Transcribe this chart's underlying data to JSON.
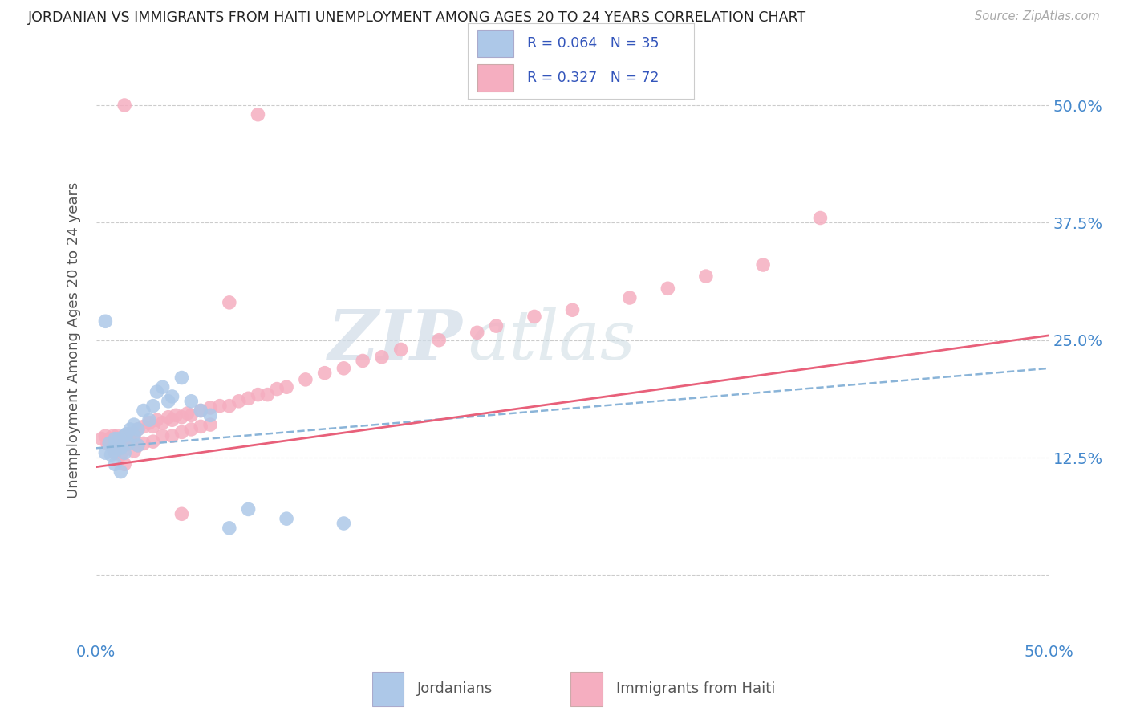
{
  "title": "JORDANIAN VS IMMIGRANTS FROM HAITI UNEMPLOYMENT AMONG AGES 20 TO 24 YEARS CORRELATION CHART",
  "source": "Source: ZipAtlas.com",
  "ylabel": "Unemployment Among Ages 20 to 24 years",
  "xmin": 0.0,
  "xmax": 0.5,
  "ymin": -0.07,
  "ymax": 0.57,
  "ytick_vals": [
    0.0,
    0.125,
    0.25,
    0.375,
    0.5
  ],
  "ytick_labels": [
    "",
    "12.5%",
    "25.0%",
    "37.5%",
    "50.0%"
  ],
  "xtick_labels": [
    "0.0%",
    "50.0%"
  ],
  "legend_r1": "R = 0.064",
  "legend_n1": "N = 35",
  "legend_r2": "R = 0.327",
  "legend_n2": "N = 72",
  "color_jord_fill": "#adc8e8",
  "color_jord_edge": "#adc8e8",
  "color_haiti_fill": "#f5aec0",
  "color_haiti_edge": "#f5aec0",
  "color_line_jord": "#8ab4d8",
  "color_line_haiti": "#e8607a",
  "watermark_zip": "ZIP",
  "watermark_atlas": "atlas",
  "bottom_legend_jord": "Jordanians",
  "bottom_legend_haiti": "Immigrants from Haiti",
  "jordanian_x": [
    0.005,
    0.007,
    0.008,
    0.009,
    0.01,
    0.01,
    0.01,
    0.012,
    0.013,
    0.013,
    0.015,
    0.015,
    0.016,
    0.017,
    0.018,
    0.02,
    0.02,
    0.022,
    0.022,
    0.025,
    0.028,
    0.03,
    0.032,
    0.035,
    0.038,
    0.04,
    0.045,
    0.05,
    0.055,
    0.06,
    0.07,
    0.08,
    0.1,
    0.13,
    0.005
  ],
  "jordanian_y": [
    0.13,
    0.14,
    0.128,
    0.135,
    0.145,
    0.132,
    0.118,
    0.145,
    0.135,
    0.11,
    0.148,
    0.13,
    0.15,
    0.14,
    0.155,
    0.16,
    0.148,
    0.155,
    0.138,
    0.175,
    0.165,
    0.18,
    0.195,
    0.2,
    0.185,
    0.19,
    0.21,
    0.185,
    0.175,
    0.17,
    0.05,
    0.07,
    0.06,
    0.055,
    0.27
  ],
  "haiti_x": [
    0.003,
    0.005,
    0.006,
    0.007,
    0.008,
    0.009,
    0.01,
    0.01,
    0.011,
    0.012,
    0.013,
    0.013,
    0.015,
    0.015,
    0.015,
    0.016,
    0.017,
    0.018,
    0.019,
    0.02,
    0.02,
    0.022,
    0.022,
    0.025,
    0.025,
    0.028,
    0.03,
    0.03,
    0.032,
    0.035,
    0.035,
    0.038,
    0.04,
    0.04,
    0.042,
    0.045,
    0.045,
    0.048,
    0.05,
    0.05,
    0.055,
    0.055,
    0.06,
    0.06,
    0.065,
    0.07,
    0.075,
    0.08,
    0.085,
    0.09,
    0.095,
    0.1,
    0.11,
    0.12,
    0.13,
    0.14,
    0.15,
    0.16,
    0.18,
    0.2,
    0.21,
    0.23,
    0.25,
    0.28,
    0.3,
    0.32,
    0.35,
    0.38,
    0.015,
    0.07,
    0.045,
    0.085
  ],
  "haiti_y": [
    0.145,
    0.148,
    0.14,
    0.145,
    0.138,
    0.148,
    0.145,
    0.13,
    0.148,
    0.145,
    0.14,
    0.128,
    0.148,
    0.138,
    0.118,
    0.148,
    0.142,
    0.15,
    0.145,
    0.15,
    0.132,
    0.155,
    0.138,
    0.158,
    0.14,
    0.162,
    0.158,
    0.142,
    0.165,
    0.162,
    0.148,
    0.168,
    0.165,
    0.148,
    0.17,
    0.168,
    0.152,
    0.172,
    0.17,
    0.155,
    0.175,
    0.158,
    0.178,
    0.16,
    0.18,
    0.18,
    0.185,
    0.188,
    0.192,
    0.192,
    0.198,
    0.2,
    0.208,
    0.215,
    0.22,
    0.228,
    0.232,
    0.24,
    0.25,
    0.258,
    0.265,
    0.275,
    0.282,
    0.295,
    0.305,
    0.318,
    0.33,
    0.38,
    0.5,
    0.29,
    0.065,
    0.49
  ]
}
